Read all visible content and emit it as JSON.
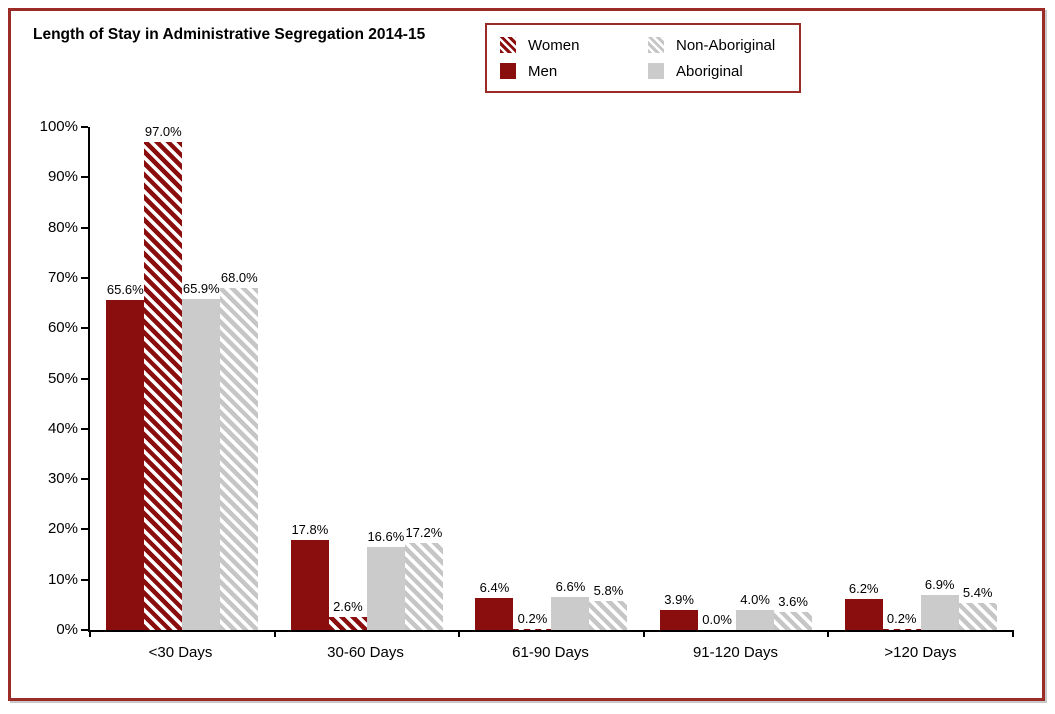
{
  "colors": {
    "bar_red": "#8B0E0E",
    "hatch_gray": "#C6C6C6",
    "solid_gray": "#CBCBCB",
    "frame_border_red": "#9A2B26",
    "axis_black": "#000000"
  },
  "legend": {
    "entries": [
      {
        "label": "Women",
        "swatch": "red-hatch"
      },
      {
        "label": "Men",
        "swatch": "red-solid"
      },
      {
        "label": "Non-Aboriginal",
        "swatch": "gray-hatch"
      },
      {
        "label": "Aboriginal",
        "swatch": "gray-solid"
      }
    ]
  },
  "chart_data": {
    "type": "bar",
    "title": "Length of Stay in Administrative Segregation 2014-15",
    "categories": [
      "<30 Days",
      "30-60 Days",
      "61-90 Days",
      "91-120 Days",
      ">120 Days"
    ],
    "bar_order": [
      "Men",
      "Women",
      "Aboriginal",
      "Non-Aboriginal"
    ],
    "series": [
      {
        "name": "Men",
        "style": "red-solid",
        "values": [
          65.6,
          17.8,
          6.4,
          3.9,
          6.2
        ]
      },
      {
        "name": "Women",
        "style": "red-hatch",
        "values": [
          97.0,
          2.6,
          0.2,
          0.0,
          0.2
        ]
      },
      {
        "name": "Aboriginal",
        "style": "gray-solid",
        "values": [
          65.9,
          16.6,
          6.6,
          4.0,
          6.9
        ]
      },
      {
        "name": "Non-Aboriginal",
        "style": "gray-hatch",
        "values": [
          68.0,
          17.2,
          5.8,
          3.6,
          5.4
        ]
      }
    ],
    "xlabel": "",
    "ylabel": "",
    "ylim": [
      0,
      100
    ],
    "ytick_step": 10,
    "ytick_labels": [
      "0%",
      "10%",
      "20%",
      "30%",
      "40%",
      "50%",
      "60%",
      "70%",
      "80%",
      "90%",
      "100%"
    ],
    "data_labels": true,
    "data_label_format": "{value:.1f}%",
    "legend_position": "top-right",
    "grid": false
  }
}
